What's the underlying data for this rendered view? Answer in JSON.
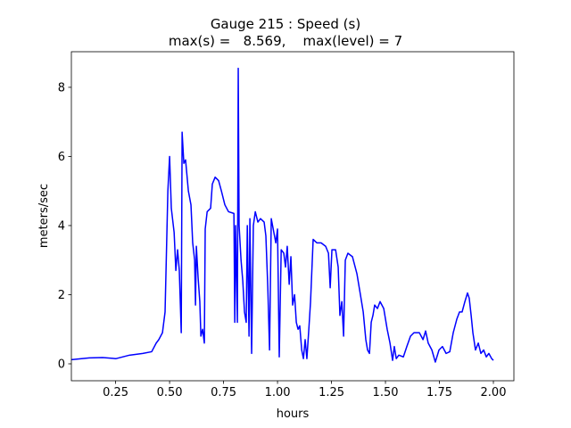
{
  "chart_data": {
    "type": "line",
    "title": "Gauge 215 : Speed (s)",
    "subtitle": "max(s) =   8.569,    max(level) = 7",
    "x_label": "hours",
    "y_label": "meters/sec",
    "xlim": [
      0.045,
      2.095
    ],
    "ylim": [
      -0.49,
      9.03
    ],
    "xticks": [
      0.25,
      {
        "value": 0.5,
        "label": "0.50"
      },
      0.75,
      {
        "value": 1.0,
        "label": "1.00"
      },
      1.25,
      {
        "value": 1.5,
        "label": "1.50"
      },
      1.75,
      {
        "value": 2.0,
        "label": "2.00"
      }
    ],
    "yticks": [
      0,
      2,
      4,
      6,
      8
    ],
    "grid": false,
    "series": [
      {
        "name": "Speed",
        "color": "#0000ff",
        "x": [
          0.045,
          0.128,
          0.19,
          0.252,
          0.314,
          0.376,
          0.417,
          0.438,
          0.45,
          0.467,
          0.479,
          0.492,
          0.5,
          0.508,
          0.521,
          0.529,
          0.537,
          0.545,
          0.554,
          0.558,
          0.566,
          0.574,
          0.587,
          0.599,
          0.607,
          0.616,
          0.62,
          0.624,
          0.632,
          0.64,
          0.645,
          0.653,
          0.661,
          0.665,
          0.674,
          0.69,
          0.698,
          0.711,
          0.727,
          0.74,
          0.756,
          0.773,
          0.798,
          0.802,
          0.806,
          0.814,
          0.818,
          0.822,
          0.831,
          0.839,
          0.847,
          0.855,
          0.86,
          0.868,
          0.872,
          0.88,
          0.888,
          0.897,
          0.909,
          0.921,
          0.938,
          0.946,
          0.955,
          0.963,
          0.971,
          0.983,
          0.992,
          1.0,
          1.008,
          1.017,
          1.029,
          1.037,
          1.045,
          1.054,
          1.062,
          1.07,
          1.079,
          1.087,
          1.095,
          1.103,
          1.112,
          1.12,
          1.128,
          1.136,
          1.145,
          1.153,
          1.165,
          1.182,
          1.202,
          1.223,
          1.236,
          1.244,
          1.252,
          1.269,
          1.281,
          1.289,
          1.298,
          1.306,
          1.314,
          1.326,
          1.347,
          1.368,
          1.384,
          1.397,
          1.409,
          1.417,
          1.426,
          1.434,
          1.442,
          1.45,
          1.463,
          1.475,
          1.492,
          1.508,
          1.521,
          1.533,
          1.541,
          1.55,
          1.562,
          1.583,
          1.599,
          1.616,
          1.632,
          1.657,
          1.674,
          1.686,
          1.698,
          1.715,
          1.731,
          1.748,
          1.764,
          1.781,
          1.798,
          1.814,
          1.831,
          1.843,
          1.855,
          1.868,
          1.88,
          1.888,
          1.897,
          1.905,
          1.917,
          1.93,
          1.942,
          1.955,
          1.967,
          1.979,
          1.992,
          2.0
        ],
        "values": [
          0.12,
          0.17,
          0.18,
          0.15,
          0.25,
          0.3,
          0.35,
          0.6,
          0.7,
          0.9,
          1.5,
          5.0,
          6.0,
          4.5,
          3.8,
          2.7,
          3.3,
          2.7,
          0.9,
          6.7,
          5.8,
          5.9,
          5.0,
          4.6,
          3.5,
          3.0,
          1.7,
          3.4,
          2.5,
          1.8,
          0.8,
          1.0,
          0.6,
          3.9,
          4.4,
          4.5,
          5.2,
          5.4,
          5.3,
          5.0,
          4.6,
          4.4,
          4.35,
          1.2,
          4.0,
          1.2,
          8.55,
          4.0,
          3.0,
          2.4,
          1.5,
          1.2,
          4.0,
          0.8,
          4.2,
          0.3,
          4.0,
          4.4,
          4.1,
          4.2,
          4.1,
          3.7,
          2.2,
          0.4,
          4.2,
          3.8,
          3.5,
          3.9,
          0.2,
          3.3,
          3.2,
          2.8,
          3.4,
          2.3,
          3.1,
          1.7,
          2.0,
          1.2,
          1.0,
          1.1,
          0.4,
          0.15,
          0.7,
          0.15,
          1.0,
          1.8,
          3.6,
          3.5,
          3.5,
          3.4,
          3.2,
          2.2,
          3.3,
          3.3,
          2.8,
          1.4,
          1.8,
          0.8,
          3.0,
          3.2,
          3.1,
          2.6,
          2.0,
          1.5,
          0.7,
          0.4,
          0.3,
          1.2,
          1.4,
          1.7,
          1.6,
          1.8,
          1.6,
          1.0,
          0.6,
          0.1,
          0.5,
          0.15,
          0.25,
          0.2,
          0.5,
          0.8,
          0.9,
          0.9,
          0.7,
          0.95,
          0.6,
          0.4,
          0.05,
          0.4,
          0.5,
          0.3,
          0.35,
          0.9,
          1.3,
          1.5,
          1.5,
          1.8,
          2.05,
          1.9,
          1.4,
          0.9,
          0.4,
          0.6,
          0.3,
          0.4,
          0.2,
          0.3,
          0.15,
          0.1
        ]
      }
    ]
  }
}
